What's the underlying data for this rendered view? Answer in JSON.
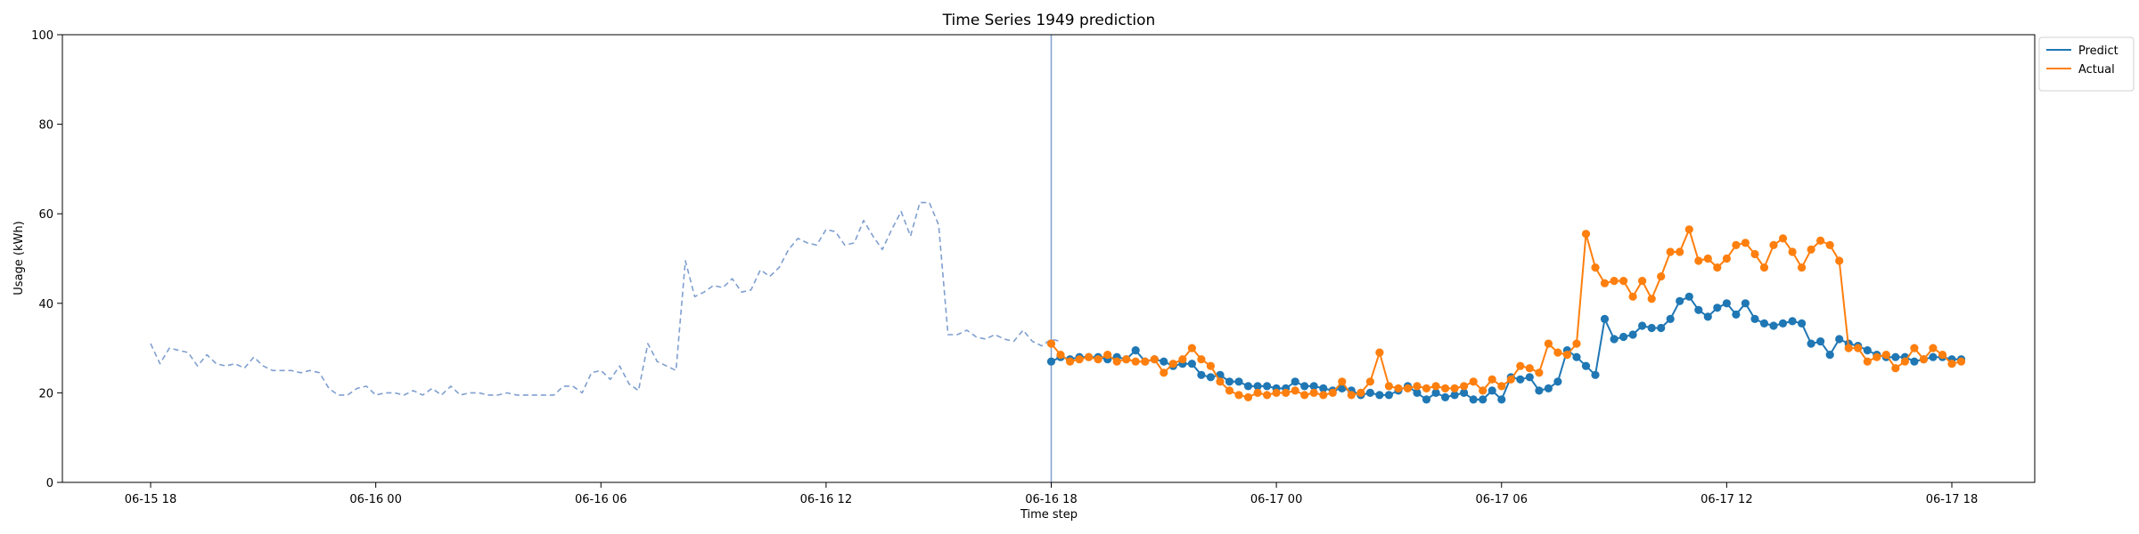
{
  "chart_data": {
    "type": "line",
    "title": "Time Series 1949 prediction",
    "xlabel": "Time step",
    "ylabel": "Usage (kWh)",
    "ylim": [
      0,
      100
    ],
    "yticks": [
      0,
      20,
      40,
      60,
      80,
      100
    ],
    "x_unit": "hourly time steps, 06-15 18:00 to 06-17 18:00 (tick labels show MM-DD HH)",
    "xticks": [
      "06-15 18",
      "06-16 00",
      "06-16 06",
      "06-16 12",
      "06-16 18",
      "06-17 00",
      "06-17 06",
      "06-17 12",
      "06-17 18"
    ],
    "forecast_start": "06-16 18",
    "legend_position": "upper right, outside plot",
    "colors": {
      "predict": "#1f77b4",
      "actual": "#ff7f0e",
      "history": "#7f9fcf",
      "forecast_line": "#7f9fcf"
    },
    "series": [
      {
        "key": "history",
        "start": "06-15 18:00",
        "step_minutes": 15,
        "style": "dashed",
        "values": [
          31.0,
          26.5,
          30.0,
          29.5,
          29.0,
          26.0,
          28.5,
          26.5,
          26.0,
          26.5,
          25.5,
          28.0,
          26.0,
          25.0,
          25.0,
          25.0,
          24.5,
          25.0,
          24.5,
          21.0,
          19.5,
          19.5,
          21.0,
          21.5,
          19.5,
          20.0,
          20.0,
          19.5,
          20.5,
          19.5,
          21.0,
          19.5,
          21.5,
          19.5,
          20.0,
          20.0,
          19.5,
          19.5,
          20.0,
          19.5,
          19.5,
          19.5,
          19.5,
          19.5,
          21.5,
          21.5,
          20.0,
          24.5,
          25.0,
          23.0,
          26.0,
          22.0,
          20.5,
          31.0,
          27.0,
          26.0,
          25.0,
          49.5,
          41.5,
          42.5,
          44.0,
          43.5,
          45.5,
          42.5,
          43.0,
          47.5,
          46.0,
          48.0,
          52.0,
          54.5,
          53.5,
          53.0,
          56.5,
          56.0,
          53.0,
          53.5,
          58.5,
          55.0,
          52.0,
          56.5,
          60.5,
          55.0,
          62.5,
          62.5,
          57.5,
          33.0,
          33.0,
          34.0,
          32.5,
          32.0,
          33.0,
          32.0,
          31.5,
          34.0,
          31.5,
          30.5,
          32.0,
          31.5
        ]
      },
      {
        "name": "Predict",
        "key": "predict",
        "start": "06-16 18:00",
        "step_minutes": 15,
        "style": "line+marker",
        "values": [
          27.0,
          28.0,
          27.5,
          28.0,
          28.0,
          28.0,
          27.5,
          28.0,
          27.5,
          29.5,
          27.0,
          27.5,
          27.0,
          26.0,
          26.5,
          26.5,
          24.0,
          23.5,
          24.0,
          22.5,
          22.5,
          21.5,
          21.5,
          21.5,
          21.0,
          21.0,
          22.5,
          21.5,
          21.5,
          21.0,
          20.5,
          21.0,
          20.5,
          19.5,
          20.0,
          19.5,
          19.5,
          20.5,
          21.5,
          20.0,
          18.5,
          20.0,
          19.0,
          19.5,
          20.0,
          18.5,
          18.5,
          20.5,
          18.5,
          23.5,
          23.0,
          23.5,
          20.5,
          21.0,
          22.5,
          29.5,
          28.0,
          26.0,
          24.0,
          36.5,
          32.0,
          32.5,
          33.0,
          35.0,
          34.5,
          34.5,
          36.5,
          40.5,
          41.5,
          38.5,
          37.0,
          39.0,
          40.0,
          37.5,
          40.0,
          36.5,
          35.5,
          35.0,
          35.5,
          36.0,
          35.5,
          31.0,
          31.5,
          28.5,
          32.0,
          31.0,
          30.5,
          29.5,
          28.5,
          28.0,
          28.0,
          28.0,
          27.0,
          27.5,
          28.0,
          28.0,
          27.5,
          27.5
        ]
      },
      {
        "name": "Actual",
        "key": "actual",
        "start": "06-16 18:00",
        "step_minutes": 15,
        "style": "line+marker",
        "values": [
          31.0,
          28.5,
          27.0,
          27.5,
          28.0,
          27.5,
          28.5,
          27.0,
          27.5,
          27.0,
          27.0,
          27.5,
          24.5,
          26.5,
          27.5,
          30.0,
          27.5,
          26.0,
          22.5,
          20.5,
          19.5,
          19.0,
          20.0,
          19.5,
          20.0,
          20.0,
          20.5,
          19.5,
          20.0,
          19.5,
          20.0,
          22.5,
          19.5,
          20.0,
          22.5,
          29.0,
          21.5,
          21.0,
          21.0,
          21.5,
          21.0,
          21.5,
          21.0,
          21.0,
          21.5,
          22.5,
          20.5,
          23.0,
          21.5,
          23.0,
          26.0,
          25.5,
          24.5,
          31.0,
          29.0,
          28.5,
          31.0,
          55.5,
          48.0,
          44.5,
          45.0,
          45.0,
          41.5,
          45.0,
          41.0,
          46.0,
          51.5,
          51.5,
          56.5,
          49.5,
          50.0,
          48.0,
          50.0,
          53.0,
          53.5,
          51.0,
          48.0,
          53.0,
          54.5,
          51.5,
          48.0,
          52.0,
          54.0,
          53.0,
          49.5,
          30.0,
          30.0,
          27.0,
          28.0,
          28.5,
          25.5,
          27.0,
          30.0,
          27.5,
          30.0,
          28.5,
          26.5,
          27.0
        ]
      }
    ]
  }
}
